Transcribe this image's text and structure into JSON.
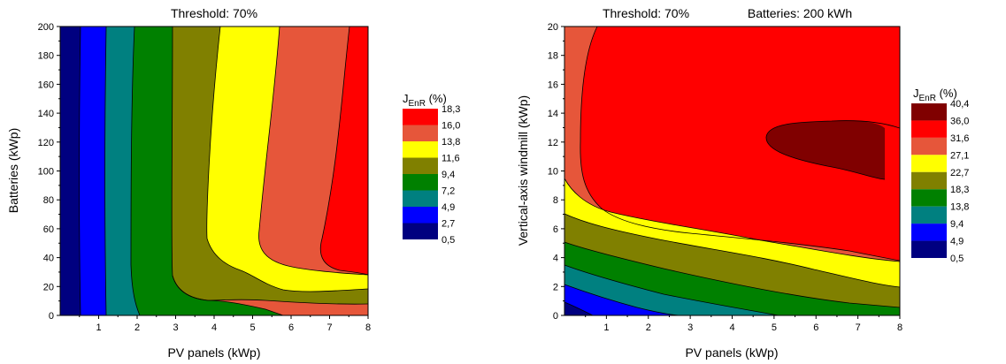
{
  "chart_data": [
    {
      "type": "contour",
      "title": "Threshold: 70%",
      "xlabel": "PV panels (kWp)",
      "ylabel": "Batteries (kWp)",
      "xlim": [
        0,
        8
      ],
      "ylim": [
        0,
        200
      ],
      "xticks": [
        "1",
        "2",
        "3",
        "4",
        "5",
        "6",
        "7",
        "8"
      ],
      "yticks": [
        "0",
        "20",
        "40",
        "60",
        "80",
        "100",
        "120",
        "140",
        "160",
        "180",
        "200"
      ],
      "legend_title": "J",
      "legend_title_sub": "EnR",
      "legend_title_unit": " (%)",
      "legend_levels": [
        "18,3",
        "16,0",
        "13,8",
        "11,6",
        "9,4",
        "7,2",
        "4,9",
        "2,7",
        "0,5"
      ],
      "colors": [
        "#ff0000",
        "#e6563a",
        "#ffff00",
        "#808000",
        "#008000",
        "#008080",
        "#0000ff",
        "#000080"
      ]
    },
    {
      "type": "contour",
      "title": "Threshold: 70%",
      "subtitle": "Batteries: 200 kWh",
      "xlabel": "PV panels (kWp)",
      "ylabel": "Vertical-axis windmill (kWp)",
      "xlim": [
        0,
        8
      ],
      "ylim": [
        0,
        20
      ],
      "xticks": [
        "1",
        "2",
        "3",
        "4",
        "5",
        "6",
        "7",
        "8"
      ],
      "yticks": [
        "0",
        "2",
        "4",
        "6",
        "8",
        "10",
        "12",
        "14",
        "16",
        "18",
        "20"
      ],
      "legend_title": "J",
      "legend_title_sub": "EnR",
      "legend_title_unit": " (%)",
      "legend_levels": [
        "40,4",
        "36,0",
        "31,6",
        "27,1",
        "22,7",
        "18,3",
        "13,8",
        "9,4",
        "4,9",
        "0,5"
      ],
      "colors": [
        "#800000",
        "#ff0000",
        "#e6563a",
        "#ffff00",
        "#808000",
        "#008000",
        "#008080",
        "#0000ff",
        "#000080"
      ]
    }
  ]
}
